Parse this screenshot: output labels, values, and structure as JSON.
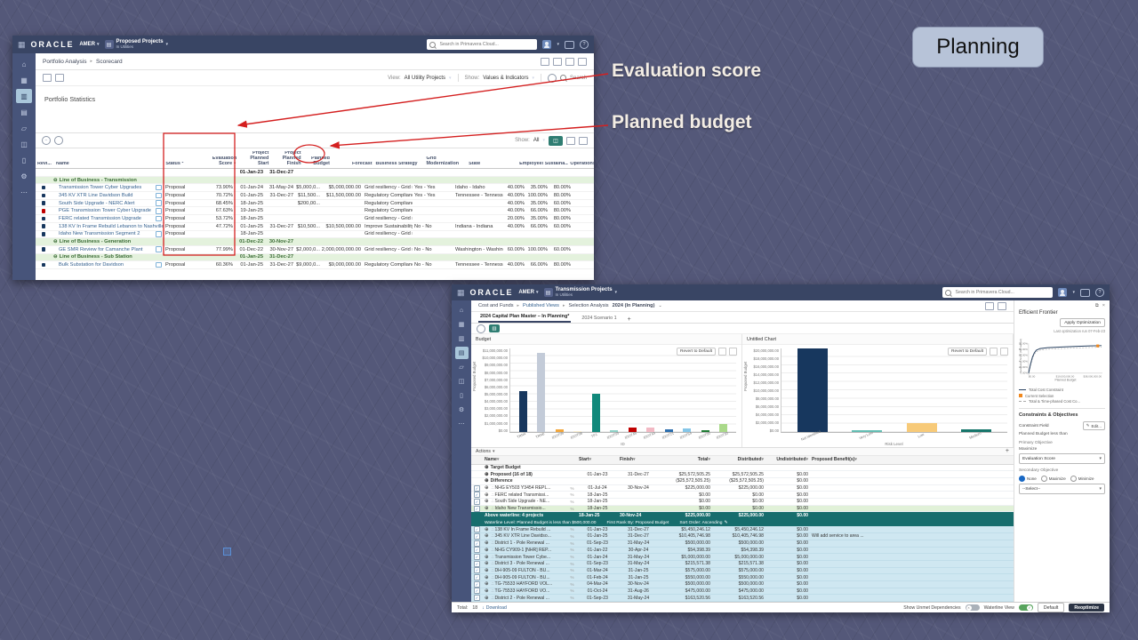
{
  "slide": {
    "planning_label": "Planning",
    "annotations": {
      "evaluation_score": "Evaluation score",
      "planned_budget": "Planned budget"
    },
    "annotation_red": "#d41f1f"
  },
  "icons": {
    "menu-grid": "▦",
    "home": "⌂",
    "dashboard": "▦",
    "portfolio-analysis": "▥",
    "capital-planning": "▤",
    "files": "▱",
    "resources": "◫",
    "reports": "▯",
    "settings": "⚙",
    "more": "⋯",
    "dropdown-arrow": "▾",
    "breadcrumb-separator": "▸",
    "collapse-node": "⊖",
    "expand-node": "⊕",
    "hierarchy": "∴",
    "sort-desc": "▼",
    "link": "%",
    "check": "✓",
    "close": "×",
    "download": "↓",
    "edit-pencil": "✎",
    "plus": "+",
    "caret-down": "⌄",
    "search": "magnifier-css-shape",
    "refresh": "⟳",
    "wrench": "⚒"
  },
  "app1": {
    "header": {
      "brand": "ORACLE",
      "region": "AMER",
      "project": "Proposed Projects",
      "project_sub": "In Utilities",
      "search_placeholder": "Search in Primavera Cloud..."
    },
    "sidebar_items": [
      "home",
      "dashboard",
      "portfolio-analysis",
      "capital-planning",
      "files",
      "resources",
      "reports",
      "settings",
      "more"
    ],
    "sidebar_active_index": 2,
    "breadcrumb": [
      "Portfolio Analysis",
      "Scorecard"
    ],
    "toolbar": {
      "view_label": "View:",
      "view_value": "All Utility Projects",
      "show_label": "Show:",
      "show_value": "Values & Indicators",
      "search_label": "Search"
    },
    "section_title": "Portfolio Statistics",
    "table_toolbar": {
      "show_label": "Show:",
      "show_value": "All"
    },
    "table": {
      "headers": [
        "Revi...",
        "Name",
        "Status *",
        "Evaluation Score",
        "Project Planned Start",
        "Project Planned Finish",
        "Planned Budget",
        "Forecast",
        "Business Strategy",
        "Grid Modernization",
        "State",
        "Employees",
        "Sustaina...",
        "Operations"
      ],
      "sorted_column_index": 3,
      "rows": [
        {
          "type": "summary",
          "cells": [
            "",
            "",
            "",
            "",
            "01-Jan-23",
            "31-Dec-27",
            "",
            "",
            "",
            "",
            "",
            "",
            "",
            ""
          ]
        },
        {
          "type": "group",
          "cells": [
            "",
            "Line of Business - Transmission",
            "",
            "",
            "",
            "",
            "",
            "",
            "",
            "",
            "",
            "",
            "",
            ""
          ]
        },
        {
          "type": "data",
          "flag": "dark",
          "cells": [
            "",
            "Transmission Tower Cyber Upgrades",
            "Proposal",
            "73.90%",
            "01-Jan-24",
            "31-May-24",
            "$5,000,0...",
            "$5,000,000.00",
            "Grid resiliency - Grid res...",
            "Yes - Yes",
            "Idaho - Idaho",
            "40.00%",
            "35.00%",
            "80.00%"
          ]
        },
        {
          "type": "data",
          "flag": "dark",
          "cells": [
            "",
            "345 KV XTR Line Davidson Build",
            "Proposal",
            "70.72%",
            "01-Jan-25",
            "31-Dec-27",
            "$11,500...",
            "$11,500,000.00",
            "Regulatory Compliance...",
            "Yes - Yes",
            "Tennessee - Tennessee",
            "40.00%",
            "100.00%",
            "80.00%"
          ]
        },
        {
          "type": "data",
          "flag": "dark",
          "cells": [
            "",
            "South Side Upgrade - NERC Alert",
            "Proposal",
            "68.45%",
            "18-Jan-25",
            "",
            "$200,00...",
            "",
            "Regulatory Compliance...",
            "",
            "",
            "40.00%",
            "35.00%",
            "60.00%"
          ]
        },
        {
          "type": "data",
          "flag": "red",
          "cells": [
            "",
            "PGE Transmission Tower Cyber Upgrade",
            "Proposal",
            "67.63%",
            "19-Jan-25",
            "",
            "",
            "",
            "Regulatory Compliance...",
            "",
            "",
            "40.00%",
            "66.00%",
            "80.00%"
          ]
        },
        {
          "type": "data",
          "flag": "dark",
          "cells": [
            "",
            "FERC related Transmission Upgrade",
            "Proposal",
            "53.72%",
            "18-Jan-25",
            "",
            "",
            "",
            "Grid resiliency - Grid res...",
            "",
            "",
            "20.00%",
            "35.00%",
            "80.00%"
          ]
        },
        {
          "type": "data",
          "flag": "dark",
          "cells": [
            "",
            "138 KV In Frame Rebuild Lebanon to Nashville",
            "Proposal",
            "47.72%",
            "01-Jan-25",
            "31-Dec-27",
            "$10,500...",
            "$10,500,000.00",
            "Improve Sustainability ...",
            "No - No",
            "Indiana - Indiana",
            "40.00%",
            "66.00%",
            "60.00%"
          ]
        },
        {
          "type": "data",
          "flag": "dark",
          "cells": [
            "",
            "Idaho New Transmission Segment 2",
            "Proposal",
            "",
            "18-Jan-25",
            "",
            "",
            "",
            "Grid resiliency - Grid res...",
            "",
            "",
            "",
            "",
            ""
          ]
        },
        {
          "type": "group",
          "cells": [
            "",
            "Line of Business - Generation",
            "",
            "",
            "01-Dec-22",
            "30-Nov-27",
            "",
            "",
            "",
            "",
            "",
            "",
            "",
            ""
          ]
        },
        {
          "type": "data",
          "flag": "dark",
          "cells": [
            "",
            "GE SMR Review for Camanche Plant",
            "Proposal",
            "77.99%",
            "01-Dec-22",
            "30-Nov-27",
            "$2,000,0...",
            "$2,000,000,000.00",
            "Grid resiliency - Grid res...",
            "No - No",
            "Washington - Washing...",
            "60.00%",
            "100.00%",
            "60.00%"
          ]
        },
        {
          "type": "group",
          "cells": [
            "",
            "Line of Business - Sub Station",
            "",
            "",
            "01-Jan-25",
            "31-Dec-27",
            "",
            "",
            "",
            "",
            "",
            "",
            "",
            ""
          ]
        },
        {
          "type": "data",
          "flag": "dark",
          "cells": [
            "",
            "Bulk Substation for Davidson",
            "Proposal",
            "60.36%",
            "01-Jan-25",
            "31-Dec-27",
            "$9,000,0...",
            "$9,000,000.00",
            "Regulatory Compliance...",
            "No - No",
            "Tennessee - Tennessee",
            "40.00%",
            "66.00%",
            "80.00%"
          ]
        }
      ]
    }
  },
  "app2": {
    "header": {
      "brand": "ORACLE",
      "region": "AMER",
      "project": "Transmission Projects",
      "project_sub": "In Utilities",
      "search_placeholder": "Search in Primavera Cloud..."
    },
    "sidebar_items": [
      "home",
      "dashboard",
      "portfolio-analysis",
      "capital-planning",
      "files",
      "resources",
      "reports",
      "settings",
      "more"
    ],
    "sidebar_active_index": 3,
    "breadcrumb": [
      "Cost and Funds",
      "Published Views",
      "Selection Analysis"
    ],
    "breadcrumb_value": "2024 (In Planning)",
    "tabs": [
      {
        "label": "2024 Capital Plan Master – In Planning*"
      },
      {
        "label": "2024 Scenario 1"
      }
    ],
    "table": {
      "actions_label": "Actions",
      "headers": [
        "",
        "Name",
        "",
        "Start",
        "Finish",
        "Total",
        "Distributed",
        "Undistributed",
        "Proposed Benefit(s)"
      ],
      "rows": [
        {
          "type": "group",
          "name": "Target Budget",
          "start": "",
          "finish": "",
          "total": "",
          "distributed": "",
          "undistributed": "",
          "benefit": ""
        },
        {
          "type": "budget",
          "name": "Proposed (16 of 18)",
          "start": "01-Jan-23",
          "finish": "31-Dec-27",
          "total": "$25,572,505.25",
          "distributed": "$25,572,505.25",
          "undistributed": "$0.00",
          "benefit": ""
        },
        {
          "type": "budget",
          "name": "Difference",
          "start": "",
          "finish": "",
          "total": "($25,572,505.25)",
          "distributed": "($25,572,505.25)",
          "undistributed": "$0.00",
          "benefit": ""
        },
        {
          "type": "project",
          "name": "NHG EY503 Y3454 REPL...",
          "start": "01-Jul-24",
          "finish": "30-Nov-24",
          "total": "$225,000.00",
          "distributed": "$225,000.00",
          "undistributed": "$0.00",
          "benefit": ""
        },
        {
          "type": "project",
          "name": "FERC related Transmissi...",
          "start": "18-Jan-25",
          "finish": "",
          "total": "$0.00",
          "distributed": "$0.00",
          "undistributed": "$0.00",
          "benefit": ""
        },
        {
          "type": "project",
          "name": "South Side Upgrade - NE...",
          "start": "18-Jan-25",
          "finish": "",
          "total": "$0.00",
          "distributed": "$0.00",
          "undistributed": "$0.00",
          "benefit": ""
        },
        {
          "type": "selected",
          "name": "Idaho New Transmissio...",
          "start": "18-Jan-25",
          "finish": "",
          "total": "$0.00",
          "distributed": "$0.00",
          "undistributed": "$0.00",
          "benefit": ""
        }
      ],
      "waterline": {
        "line1": {
          "name": "Above waterline: 4 projects",
          "start": "18-Jan-25",
          "finish": "30-Nov-24",
          "total": "$225,000.00",
          "distributed": "$225,000.00",
          "undistributed": "$0.00"
        },
        "line2_left": "Waterline Level: Planned Budget is less than $500,000.00",
        "line2_mid": "First Rank By: Proposed Budget",
        "line2_right": "Sort Order: Ascending"
      },
      "below_rows": [
        {
          "type": "below",
          "name": "138 KV In Frame Rebuild ...",
          "start": "01-Jan-23",
          "finish": "31-Dec-27",
          "total": "$5,450,246.12",
          "distributed": "$5,450,246.12",
          "undistributed": "$0.00",
          "benefit": ""
        },
        {
          "type": "below",
          "name": "345 KV XTR Line Davidso...",
          "start": "01-Jan-25",
          "finish": "31-Dec-27",
          "total": "$10,405,746.98",
          "distributed": "$10,405,746.98",
          "undistributed": "$0.00",
          "benefit": "Will add service to area ..."
        },
        {
          "type": "below",
          "name": "District 1 - Pole Renewal ...",
          "start": "01-Sep-23",
          "finish": "31-May-24",
          "total": "$500,000.00",
          "distributed": "$500,000.00",
          "undistributed": "$0.00",
          "benefit": ""
        },
        {
          "type": "below",
          "name": "NHG CY909-1 [NHR] REP...",
          "start": "01-Jan-22",
          "finish": "30-Apr-24",
          "total": "$54,398.39",
          "distributed": "$54,398.39",
          "undistributed": "$0.00",
          "benefit": ""
        },
        {
          "type": "below",
          "name": "Transmission Tower Cybe...",
          "start": "01-Jan-24",
          "finish": "31-May-24",
          "total": "$5,000,000.00",
          "distributed": "$5,000,000.00",
          "undistributed": "$0.00",
          "benefit": ""
        },
        {
          "type": "below",
          "name": "District 3 - Pole Renewal ...",
          "start": "01-Sep-23",
          "finish": "31-May-24",
          "total": "$215,571.38",
          "distributed": "$215,571.38",
          "undistributed": "$0.00",
          "benefit": ""
        },
        {
          "type": "below",
          "name": "DH-905-09 FULTON - BU...",
          "start": "01-Mar-24",
          "finish": "31-Jan-25",
          "total": "$575,000.00",
          "distributed": "$575,000.00",
          "undistributed": "$0.00",
          "benefit": ""
        },
        {
          "type": "below",
          "name": "DH-905-09 FULTON - BU...",
          "start": "01-Feb-24",
          "finish": "31-Jan-25",
          "total": "$550,000.00",
          "distributed": "$550,000.00",
          "undistributed": "$0.00",
          "benefit": ""
        },
        {
          "type": "below",
          "name": "TG-75533 HAYFORD VOL...",
          "start": "04-Mar-24",
          "finish": "30-Nov-24",
          "total": "$500,000.00",
          "distributed": "$500,000.00",
          "undistributed": "$0.00",
          "benefit": ""
        },
        {
          "type": "below",
          "name": "TG-75533 HAYFORD VO...",
          "start": "01-Oct-24",
          "finish": "31-Aug-26",
          "total": "$475,000.00",
          "distributed": "$475,000.00",
          "undistributed": "$0.00",
          "benefit": ""
        },
        {
          "type": "below",
          "name": "District 2 - Pole Renewal ...",
          "start": "01-Sep-23",
          "finish": "31-May-24",
          "total": "$163,520.56",
          "distributed": "$163,520.56",
          "undistributed": "$0.00",
          "benefit": ""
        }
      ]
    },
    "frontier": {
      "title": "Efficient Frontier",
      "apply_button": "Apply Optimization",
      "last_run": "Last optimization run 07-Feb-23",
      "legend": [
        "Total Cost Constraint",
        "Current Selection",
        "Total & Time-phased Cost Co..."
      ]
    },
    "constraints": {
      "title": "Constraints & Objectives",
      "constraint_field_label": "Constraint Field",
      "edit_button": "Edit...",
      "constraint_desc": "Planned Budget less than",
      "primary_objective_label": "Primary Objective",
      "maximize_label": "Maximize",
      "primary_value": "Evaluation Score",
      "secondary_objective_label": "Secondary Objective",
      "radio_options": [
        "None",
        "Maximize",
        "Minimize"
      ],
      "secondary_value": "--Select--"
    },
    "footer": {
      "total_label": "Total:",
      "total_value": "18",
      "download_label": "Download",
      "show_unmet_label": "Show Unmet Dependencies",
      "waterline_label": "Waterline View",
      "default_button": "Default",
      "reoptimize_button": "Reoptimize"
    },
    "colors": {
      "header_navy": "#394564",
      "teal_accent": "#2f7d72",
      "waterline_teal": "#176d6d"
    }
  },
  "chart_data": [
    {
      "type": "bar",
      "title": "Budget",
      "xlabel": "ID",
      "ylabel": "Proposed Budget",
      "ylim": [
        0,
        11000000
      ],
      "grid": true,
      "revert_button": "Revert to Default",
      "ytick_labels": [
        "$11,000,000.00",
        "$10,000,000.00",
        "$9,000,000.00",
        "$8,000,000.00",
        "$7,000,000.00",
        "$6,000,000.00",
        "$5,000,000.00",
        "$4,000,000.00",
        "$3,000,000.00",
        "$2,000,000.00",
        "$1,000,000.00",
        "$0.00"
      ],
      "categories": [
        "TRN4",
        "TRN6",
        "IDOT05",
        "IDOT08",
        "TF1",
        "IDOT03",
        "IDOT45",
        "IDOT44",
        "IDOT21",
        "IDOT54",
        "IDOT00",
        "IDOT30"
      ],
      "values": [
        5350000,
        10400000,
        300000,
        60000,
        5000000,
        200000,
        550000,
        550000,
        300000,
        500000,
        200000,
        1050000
      ],
      "colors": [
        "#17375e",
        "#c3cbd8",
        "#f2a73d",
        "#f7eccd",
        "#11897b",
        "#8ed0c6",
        "#c00000",
        "#f2b9c4",
        "#2d6fae",
        "#85c6e8",
        "#1e7b33",
        "#aad98a"
      ]
    },
    {
      "type": "bar",
      "title": "Untitled Chart",
      "xlabel": "Risk Level",
      "ylabel": "Proposed Budget",
      "ylim": [
        0,
        20500000
      ],
      "grid": true,
      "revert_button": "Revert to Default",
      "ytick_labels": [
        "$20,000,000.00",
        "$18,000,000.00",
        "$16,000,000.00",
        "$14,000,000.00",
        "$12,000,000.00",
        "$10,000,000.00",
        "$8,000,000.00",
        "$6,000,000.00",
        "$4,000,000.00",
        "$2,000,000.00",
        "$0.00"
      ],
      "categories": [
        "Not Identified",
        "Very Low",
        "Low",
        "Medium"
      ],
      "values": [
        20500000,
        400000,
        2200000,
        700000
      ],
      "colors": [
        "#17375e",
        "#63bdb3",
        "#f7ca79",
        "#17766b"
      ]
    },
    {
      "type": "line",
      "title": "Efficient Frontier",
      "xlabel": "Planned Budget",
      "ylabel": "Evaluation Score (Normalized)",
      "xmax": 38,
      "ylim": [
        0,
        100
      ],
      "xtick_labels": [
        "$0.00",
        "$19,000,000.00",
        "$38,000,000.00"
      ],
      "ytick_labels": [
        "100.00%",
        "80.00%",
        "60.00%",
        "40.00%",
        "20.00%",
        "0.00%"
      ],
      "points": [
        [
          0,
          0
        ],
        [
          1,
          30
        ],
        [
          2,
          55
        ],
        [
          3,
          70
        ],
        [
          4,
          79
        ],
        [
          6,
          85
        ],
        [
          10,
          88
        ],
        [
          16,
          90
        ],
        [
          24,
          92
        ],
        [
          32,
          94
        ],
        [
          38,
          95
        ]
      ],
      "current_selection": [
        36,
        94
      ]
    }
  ]
}
